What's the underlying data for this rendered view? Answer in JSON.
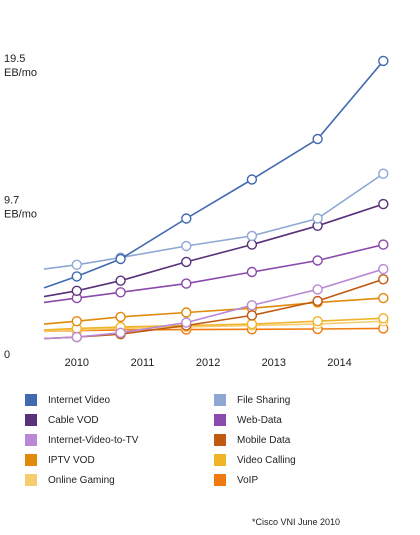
{
  "chart_data": {
    "type": "line",
    "x": [
      2009.5,
      2010,
      2010.667,
      2011.667,
      2012.667,
      2013.667,
      2014.667
    ],
    "xticks": [
      "2010",
      "2011",
      "2012",
      "2013",
      "2014"
    ],
    "xtick_values": [
      2010,
      2011,
      2012,
      2013,
      2014
    ],
    "xlim": [
      2009.5,
      2014.8
    ],
    "ylim": [
      0,
      19.5
    ],
    "yticks": [
      {
        "value": 19.5,
        "lines": [
          "19.5",
          "EB/mo"
        ]
      },
      {
        "value": 9.7,
        "lines": [
          "9.7",
          "EB/mo"
        ]
      },
      {
        "value": 0,
        "lines": [
          "0"
        ]
      }
    ],
    "grid": false,
    "series": [
      {
        "name": "Internet Video",
        "color": "#4169b0",
        "values": [
          3.6,
          4.4,
          5.6,
          8.4,
          11.1,
          13.9,
          19.3
        ]
      },
      {
        "name": "File Sharing",
        "color": "#8da8d4",
        "values": [
          4.9,
          5.2,
          5.7,
          6.5,
          7.2,
          8.4,
          11.5
        ]
      },
      {
        "name": "Cable VOD",
        "color": "#58317a",
        "values": [
          3.0,
          3.4,
          4.1,
          5.4,
          6.6,
          7.9,
          9.4
        ]
      },
      {
        "name": "Web-Data",
        "color": "#8b49ab",
        "values": [
          2.6,
          2.9,
          3.3,
          3.9,
          4.7,
          5.5,
          6.6
        ]
      },
      {
        "name": "Internet-Video-to-TV",
        "color": "#b988d4",
        "values": [
          0.1,
          0.2,
          0.5,
          1.2,
          2.4,
          3.5,
          4.9
        ]
      },
      {
        "name": "Mobile Data",
        "color": "#c05a10",
        "values": [
          0.1,
          0.2,
          0.4,
          1.0,
          1.7,
          2.7,
          4.2
        ]
      },
      {
        "name": "IPTV VOD",
        "color": "#e0890a",
        "values": [
          1.1,
          1.3,
          1.6,
          1.9,
          2.2,
          2.6,
          2.9
        ]
      },
      {
        "name": "Video Calling",
        "color": "#f0b428",
        "values": [
          0.7,
          0.8,
          0.9,
          1.0,
          1.1,
          1.3,
          1.5
        ]
      },
      {
        "name": "Online Gaming",
        "color": "#f5cc70",
        "values": [
          0.6,
          0.7,
          0.8,
          0.9,
          1.0,
          1.1,
          1.3
        ]
      },
      {
        "name": "VoIP",
        "color": "#f07a10",
        "values": [
          0.6,
          0.65,
          0.7,
          0.72,
          0.74,
          0.76,
          0.8
        ]
      }
    ]
  },
  "legend": {
    "items": [
      {
        "label": "Internet Video",
        "color": "#4169b0"
      },
      {
        "label": "File Sharing",
        "color": "#8da8d4"
      },
      {
        "label": "Cable VOD",
        "color": "#58317a"
      },
      {
        "label": "Web-Data",
        "color": "#8b49ab"
      },
      {
        "label": "Internet-Video-to-TV",
        "color": "#b988d4"
      },
      {
        "label": "Mobile Data",
        "color": "#c05a10"
      },
      {
        "label": "IPTV VOD",
        "color": "#e0890a"
      },
      {
        "label": "Video Calling",
        "color": "#f0b428"
      },
      {
        "label": "Online Gaming",
        "color": "#f5cc70"
      },
      {
        "label": "VoIP",
        "color": "#f07a10"
      }
    ]
  },
  "source_note": "*Cisco VNI June 2010"
}
